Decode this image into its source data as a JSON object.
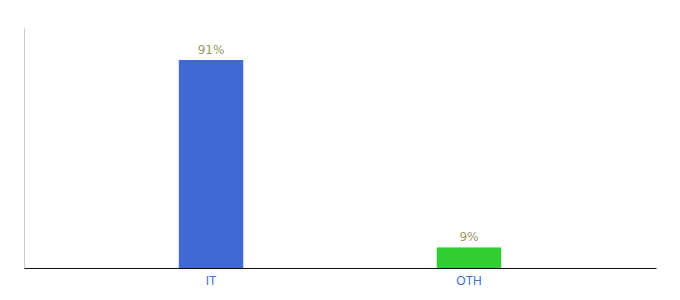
{
  "chart_data": {
    "type": "bar",
    "categories": [
      "IT",
      "OTH"
    ],
    "values": [
      91,
      9
    ],
    "value_labels": [
      "91%",
      "9%"
    ],
    "colors": [
      "#4169d4",
      "#33cc33"
    ],
    "ylim": [
      0,
      105
    ],
    "data_labels": true,
    "tick_labels": "x"
  }
}
